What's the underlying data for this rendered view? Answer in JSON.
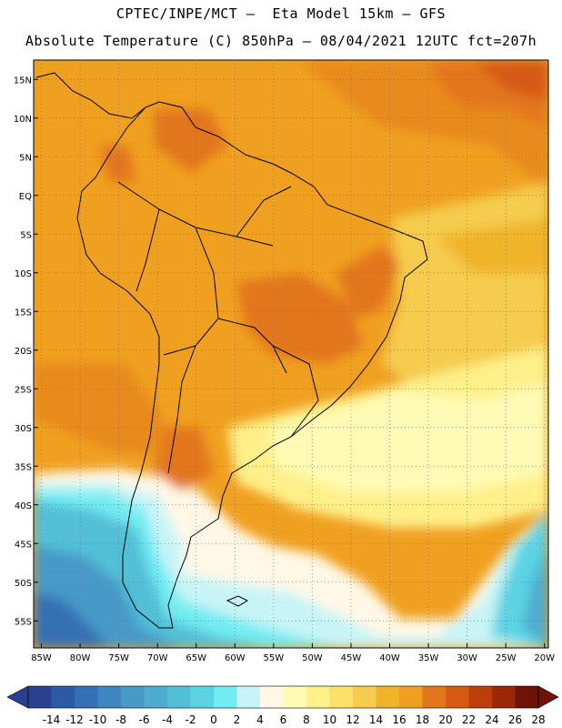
{
  "header": {
    "line1": "CPTEC/INPE/MCT –  Eta Model 15km – GFS",
    "line2": "Absolute Temperature (C) 850hPa – 08/04/2021 12UTC fct=207h"
  },
  "map": {
    "lat_labels": [
      "15N",
      "10N",
      "5N",
      "EQ",
      "5S",
      "10S",
      "15S",
      "20S",
      "25S",
      "30S",
      "35S",
      "40S",
      "45S",
      "50S",
      "55S"
    ],
    "lat_values": [
      15,
      10,
      5,
      0,
      -5,
      -10,
      -15,
      -20,
      -25,
      -30,
      -35,
      -40,
      -45,
      -50,
      -55
    ],
    "lon_labels": [
      "85W",
      "80W",
      "75W",
      "70W",
      "65W",
      "60W",
      "55W",
      "50W",
      "45W",
      "40W",
      "35W",
      "30W",
      "25W",
      "20W"
    ],
    "lon_values": [
      -85,
      -80,
      -75,
      -70,
      -65,
      -60,
      -55,
      -50,
      -45,
      -40,
      -35,
      -30,
      -25,
      -20
    ],
    "lon_range": [
      -86,
      -19.5
    ],
    "lat_range": [
      -58.5,
      17.5
    ],
    "grid": "dotted"
  },
  "colorbar": {
    "levels": [
      "-14",
      "-12",
      "-10",
      "-8",
      "-6",
      "-4",
      "-2",
      "0",
      "2",
      "4",
      "6",
      "8",
      "10",
      "12",
      "14",
      "16",
      "18",
      "20",
      "22",
      "24",
      "26",
      "28"
    ],
    "colors": [
      "#2a3f8f",
      "#2c5ba6",
      "#3470b5",
      "#3f86c1",
      "#4799c8",
      "#4eaccf",
      "#52bfd7",
      "#5cd3e3",
      "#73ecf1",
      "#c8f4f7",
      "#fff8e6",
      "#fffbb6",
      "#fff08a",
      "#fbe06b",
      "#f5cc4e",
      "#f0b429",
      "#f0a020",
      "#e2761a",
      "#d65a13",
      "#bd3d0c",
      "#9a2808",
      "#6e1305"
    ]
  }
}
